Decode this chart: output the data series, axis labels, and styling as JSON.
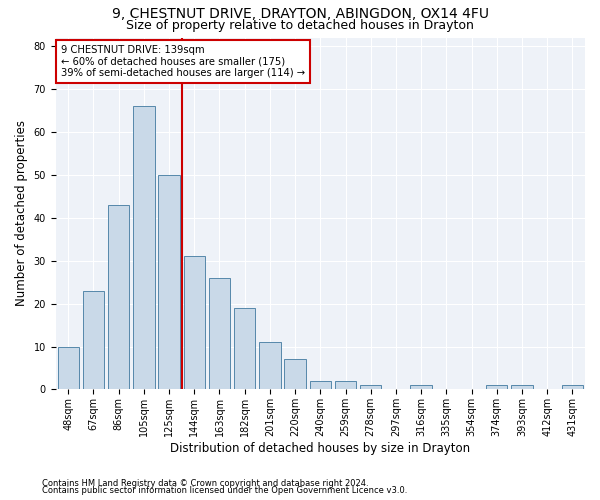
{
  "title1": "9, CHESTNUT DRIVE, DRAYTON, ABINGDON, OX14 4FU",
  "title2": "Size of property relative to detached houses in Drayton",
  "xlabel": "Distribution of detached houses by size in Drayton",
  "ylabel": "Number of detached properties",
  "categories": [
    "48sqm",
    "67sqm",
    "86sqm",
    "105sqm",
    "125sqm",
    "144sqm",
    "163sqm",
    "182sqm",
    "201sqm",
    "220sqm",
    "240sqm",
    "259sqm",
    "278sqm",
    "297sqm",
    "316sqm",
    "335sqm",
    "354sqm",
    "374sqm",
    "393sqm",
    "412sqm",
    "431sqm"
  ],
  "values": [
    10,
    23,
    43,
    66,
    50,
    31,
    26,
    19,
    11,
    7,
    2,
    2,
    1,
    0,
    1,
    0,
    0,
    1,
    1,
    0,
    1
  ],
  "bar_color": "#c9d9e8",
  "bar_edge_color": "#5588aa",
  "vline_color": "#cc0000",
  "vline_x_index": 4.5,
  "box_edge_color": "#cc0000",
  "ylim": [
    0,
    82
  ],
  "yticks": [
    0,
    10,
    20,
    30,
    40,
    50,
    60,
    70,
    80
  ],
  "footnote1": "Contains HM Land Registry data © Crown copyright and database right 2024.",
  "footnote2": "Contains public sector information licensed under the Open Government Licence v3.0.",
  "bg_color": "#eef2f8",
  "title1_fontsize": 10,
  "title2_fontsize": 9,
  "xlabel_fontsize": 8.5,
  "ylabel_fontsize": 8.5,
  "tick_fontsize": 7,
  "annot_line1": "9 CHESTNUT DRIVE: 139sqm",
  "annot_line2": "← 60% of detached houses are smaller (175)",
  "annot_line3": "39% of semi-detached houses are larger (114) →"
}
